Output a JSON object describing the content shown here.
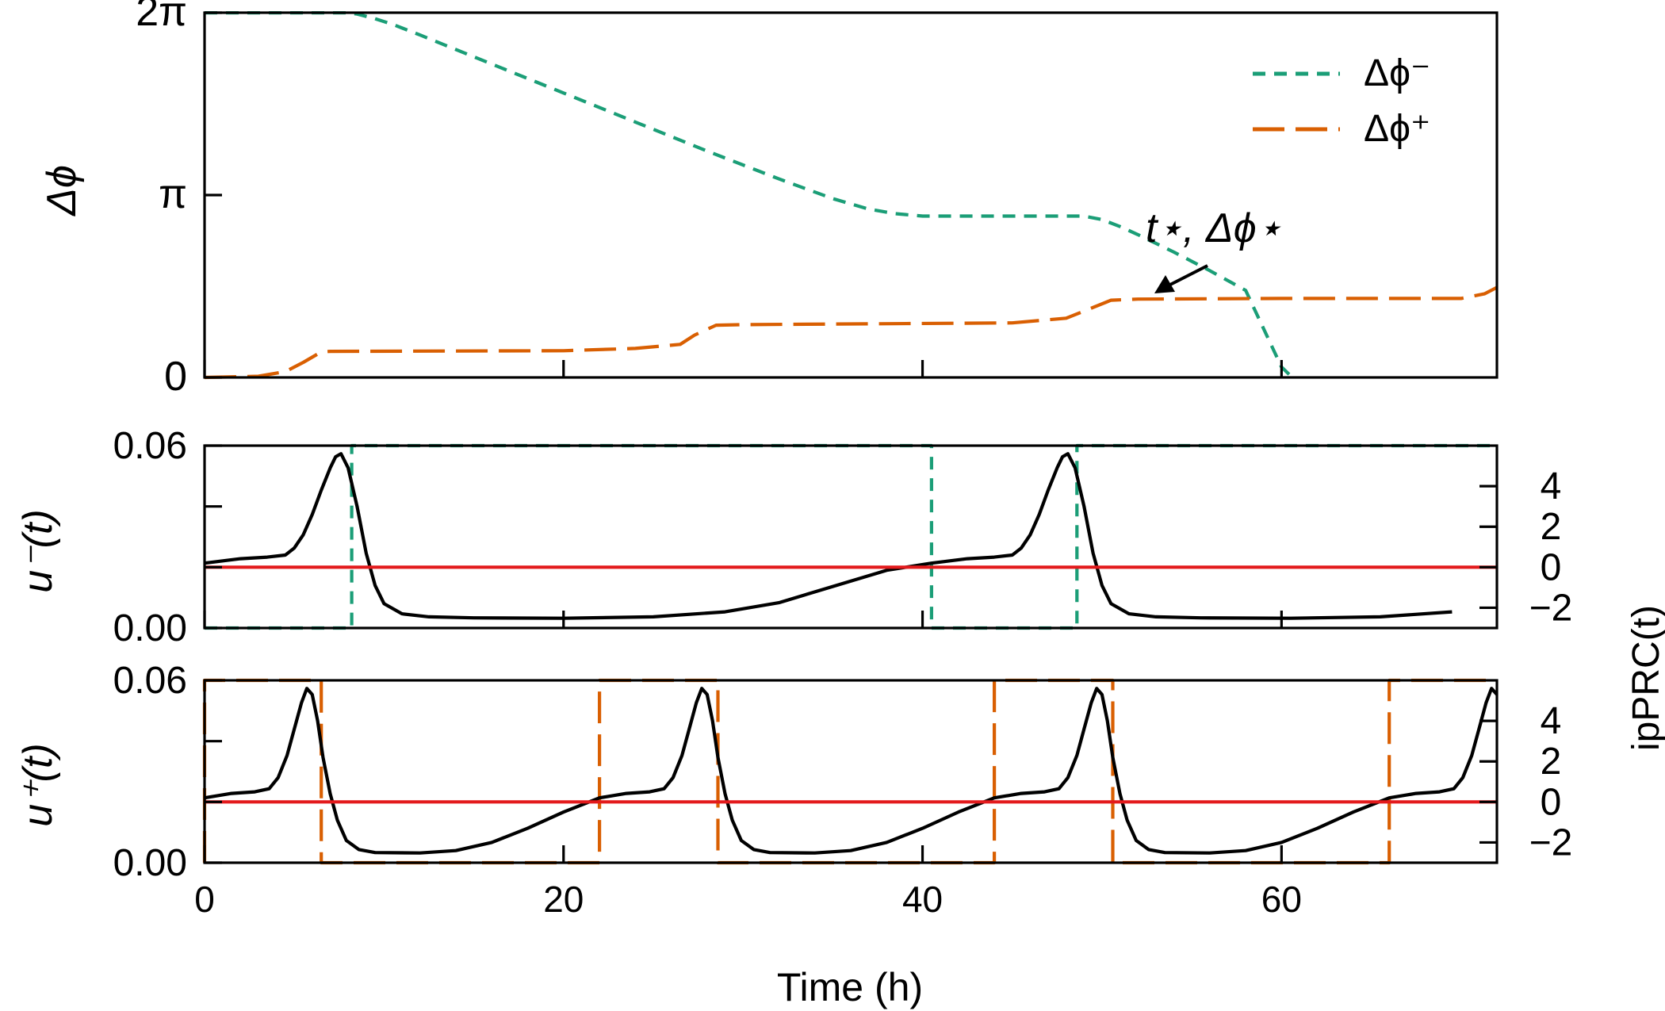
{
  "colors": {
    "minus": "#1b9e77",
    "plus": "#d95f02",
    "iprc": "#000000",
    "zero_line": "#e31a1c",
    "axes": "#000000"
  },
  "xlabel": "Time (h)",
  "chart_data": [
    {
      "type": "line",
      "panel": "top",
      "ylabel": "Δϕ",
      "xlim": [
        0,
        72
      ],
      "ylim": [
        0,
        6.2832
      ],
      "x_ticks": [
        0,
        20,
        40,
        60
      ],
      "y_ticks": [
        {
          "value": 0,
          "label": "0"
        },
        {
          "value": 3.1416,
          "label": "π"
        },
        {
          "value": 6.2832,
          "label": "2π"
        }
      ],
      "legend": {
        "position": "top-right",
        "entries": [
          {
            "label": "Δϕ⁻",
            "color": "#1b9e77",
            "style": "short-dash"
          },
          {
            "label": "Δϕ⁺",
            "color": "#d95f02",
            "style": "long-dash"
          }
        ]
      },
      "series": [
        {
          "name": "Δϕ⁻",
          "color": "#1b9e77",
          "style": "short-dash",
          "points": [
            [
              0,
              6.28
            ],
            [
              8,
              6.28
            ],
            [
              8.5,
              6.26
            ],
            [
              9.5,
              6.18
            ],
            [
              10.5,
              6.08
            ],
            [
              12,
              5.9
            ],
            [
              16,
              5.4
            ],
            [
              20,
              4.9
            ],
            [
              24,
              4.4
            ],
            [
              28,
              3.9
            ],
            [
              32,
              3.42
            ],
            [
              35,
              3.08
            ],
            [
              37,
              2.9
            ],
            [
              38.5,
              2.82
            ],
            [
              40,
              2.78
            ],
            [
              45,
              2.78
            ],
            [
              49,
              2.78
            ],
            [
              50,
              2.72
            ],
            [
              51,
              2.6
            ],
            [
              52,
              2.46
            ],
            [
              54,
              2.16
            ],
            [
              56,
              1.84
            ],
            [
              58,
              1.5
            ],
            [
              60,
              0.18
            ],
            [
              60.6,
              0
            ]
          ]
        },
        {
          "name": "Δϕ⁺",
          "color": "#d95f02",
          "style": "long-dash",
          "points": [
            [
              0,
              0
            ],
            [
              3,
              0.02
            ],
            [
              4.5,
              0.1
            ],
            [
              5.5,
              0.26
            ],
            [
              6.5,
              0.44
            ],
            [
              7,
              0.45
            ],
            [
              20,
              0.46
            ],
            [
              24,
              0.5
            ],
            [
              26.5,
              0.57
            ],
            [
              27.3,
              0.73
            ],
            [
              28.5,
              0.9
            ],
            [
              30,
              0.91
            ],
            [
              45,
              0.94
            ],
            [
              48,
              1.02
            ],
            [
              49.3,
              1.18
            ],
            [
              50.5,
              1.33
            ],
            [
              52,
              1.35
            ],
            [
              60,
              1.36
            ],
            [
              70,
              1.36
            ],
            [
              71.3,
              1.44
            ],
            [
              72,
              1.55
            ]
          ]
        }
      ],
      "annotation": {
        "text": "t⋆, Δϕ⋆",
        "point": [
          52.2,
          1.35
        ]
      }
    },
    {
      "type": "line",
      "panel": "middle",
      "ylabel": "u⁻(t)",
      "ylabel_right": "ipPRC(t)",
      "xlim": [
        0,
        72
      ],
      "ylim": [
        0,
        0.06
      ],
      "ylim_right": [
        -3,
        6
      ],
      "x_ticks": [
        0,
        20,
        40,
        60
      ],
      "y_ticks_left": [
        "0.00",
        "0.06"
      ],
      "y_ticks_right": [
        {
          "value": -2,
          "label": "−2"
        },
        {
          "value": 0,
          "label": "0"
        },
        {
          "value": 2,
          "label": "2"
        },
        {
          "value": 4,
          "label": "4"
        }
      ],
      "series": [
        {
          "name": "u⁻(t)",
          "color": "#1b9e77",
          "style": "short-dash",
          "points": [
            [
              0,
              0
            ],
            [
              8.2,
              0
            ],
            [
              8.2,
              0.06
            ],
            [
              40.5,
              0.06
            ],
            [
              40.5,
              0
            ],
            [
              48.6,
              0
            ],
            [
              48.6,
              0.06
            ],
            [
              72,
              0.06
            ]
          ]
        },
        {
          "name": "ipPRC(t)",
          "color": "#000000",
          "axis": "right",
          "period": 40.5,
          "points": [
            [
              0,
              0.2
            ],
            [
              2,
              0.42
            ],
            [
              3.5,
              0.5
            ],
            [
              4.5,
              0.6
            ],
            [
              5,
              0.95
            ],
            [
              5.5,
              1.6
            ],
            [
              6,
              2.6
            ],
            [
              6.5,
              3.8
            ],
            [
              7,
              4.9
            ],
            [
              7.3,
              5.45
            ],
            [
              7.6,
              5.6
            ],
            [
              8,
              4.9
            ],
            [
              8.5,
              3.0
            ],
            [
              9,
              0.7
            ],
            [
              9.5,
              -0.9
            ],
            [
              10,
              -1.8
            ],
            [
              11,
              -2.3
            ],
            [
              12.5,
              -2.45
            ],
            [
              15,
              -2.5
            ],
            [
              20,
              -2.52
            ],
            [
              25,
              -2.45
            ],
            [
              29,
              -2.2
            ],
            [
              32,
              -1.75
            ],
            [
              35,
              -0.95
            ],
            [
              38,
              -0.15
            ],
            [
              40.5,
              0.2
            ]
          ]
        },
        {
          "name": "zero",
          "color": "#e31a1c",
          "axis": "right",
          "points": [
            [
              0,
              0
            ],
            [
              72,
              0
            ]
          ]
        }
      ]
    },
    {
      "type": "line",
      "panel": "bottom",
      "ylabel": "u⁺(t)",
      "ylabel_right": "ipPRC(t)",
      "xlim": [
        0,
        72
      ],
      "ylim": [
        0,
        0.06
      ],
      "ylim_right": [
        -3,
        6
      ],
      "x_ticks": [
        0,
        20,
        40,
        60
      ],
      "y_ticks_left": [
        "0.00",
        "0.06"
      ],
      "y_ticks_right": [
        {
          "value": -2,
          "label": "−2"
        },
        {
          "value": 0,
          "label": "0"
        },
        {
          "value": 2,
          "label": "2"
        },
        {
          "value": 4,
          "label": "4"
        }
      ],
      "series": [
        {
          "name": "u⁺(t)",
          "color": "#d95f02",
          "style": "long-dash",
          "points": [
            [
              0,
              0
            ],
            [
              0,
              0.06
            ],
            [
              6.5,
              0.06
            ],
            [
              6.5,
              0
            ],
            [
              22,
              0
            ],
            [
              22,
              0.06
            ],
            [
              28.6,
              0.06
            ],
            [
              28.6,
              0
            ],
            [
              44,
              0
            ],
            [
              44,
              0.06
            ],
            [
              50.6,
              0.06
            ],
            [
              50.6,
              0
            ],
            [
              66,
              0
            ],
            [
              66,
              0.06
            ],
            [
              72,
              0.06
            ]
          ]
        },
        {
          "name": "ipPRC(t)",
          "color": "#000000",
          "axis": "right",
          "period": 22,
          "points": [
            [
              0,
              0.2
            ],
            [
              1.5,
              0.42
            ],
            [
              2.8,
              0.5
            ],
            [
              3.6,
              0.65
            ],
            [
              4.1,
              1.2
            ],
            [
              4.6,
              2.3
            ],
            [
              5,
              3.6
            ],
            [
              5.4,
              4.9
            ],
            [
              5.7,
              5.6
            ],
            [
              6,
              5.3
            ],
            [
              6.3,
              4.0
            ],
            [
              6.6,
              2.2
            ],
            [
              7,
              0.4
            ],
            [
              7.4,
              -0.9
            ],
            [
              7.9,
              -1.9
            ],
            [
              8.6,
              -2.35
            ],
            [
              9.5,
              -2.5
            ],
            [
              12,
              -2.52
            ],
            [
              14,
              -2.4
            ],
            [
              16,
              -2.0
            ],
            [
              18,
              -1.3
            ],
            [
              20,
              -0.5
            ],
            [
              22,
              0.2
            ]
          ]
        },
        {
          "name": "zero",
          "color": "#e31a1c",
          "axis": "right",
          "points": [
            [
              0,
              0
            ],
            [
              72,
              0
            ]
          ]
        }
      ]
    }
  ]
}
